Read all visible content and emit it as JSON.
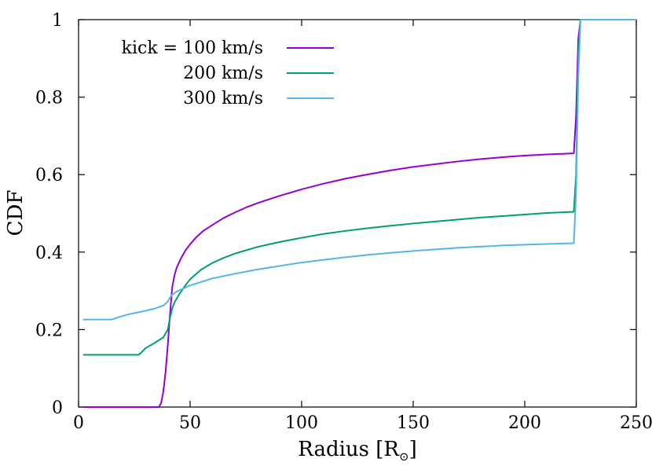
{
  "chart_data": {
    "type": "line",
    "xlabel": "Radius [R",
    "xlabel_sub": "⊙",
    "xlabel_close": "]",
    "ylabel": "CDF",
    "xlim": [
      0,
      250
    ],
    "ylim": [
      0,
      1
    ],
    "x_ticks": [
      "0",
      "50",
      "100",
      "150",
      "200",
      "250"
    ],
    "y_ticks": [
      "0",
      "0.2",
      "0.4",
      "0.6",
      "0.8",
      "1"
    ],
    "grid": false,
    "legend_position": "top-left",
    "series": [
      {
        "name": "kick = 100 km/s",
        "color": "#9400d3",
        "x": [
          2,
          36,
          37,
          38,
          39,
          40,
          41,
          42,
          43,
          44,
          46,
          48,
          50,
          53,
          56,
          60,
          65,
          70,
          75,
          80,
          90,
          100,
          110,
          120,
          130,
          140,
          150,
          160,
          170,
          180,
          190,
          200,
          210,
          222,
          223,
          224,
          225,
          250
        ],
        "y": [
          0,
          0,
          0.01,
          0.04,
          0.09,
          0.16,
          0.24,
          0.31,
          0.34,
          0.36,
          0.385,
          0.405,
          0.42,
          0.44,
          0.455,
          0.47,
          0.488,
          0.502,
          0.515,
          0.526,
          0.545,
          0.562,
          0.577,
          0.59,
          0.601,
          0.611,
          0.62,
          0.627,
          0.634,
          0.64,
          0.645,
          0.649,
          0.652,
          0.655,
          0.75,
          0.95,
          1,
          1
        ]
      },
      {
        "name": "200 km/s",
        "color": "#009e73",
        "x": [
          2,
          10,
          20,
          27,
          28,
          30,
          34,
          38,
          40,
          41,
          42,
          43,
          45,
          48,
          50,
          55,
          60,
          65,
          70,
          80,
          90,
          100,
          110,
          120,
          130,
          140,
          150,
          160,
          170,
          180,
          190,
          200,
          210,
          222,
          223,
          224,
          225,
          250
        ],
        "y": [
          0.135,
          0.135,
          0.135,
          0.135,
          0.14,
          0.152,
          0.165,
          0.18,
          0.2,
          0.23,
          0.255,
          0.27,
          0.29,
          0.315,
          0.33,
          0.355,
          0.372,
          0.385,
          0.396,
          0.413,
          0.426,
          0.437,
          0.447,
          0.455,
          0.462,
          0.468,
          0.474,
          0.479,
          0.484,
          0.489,
          0.493,
          0.497,
          0.501,
          0.504,
          0.6,
          0.9,
          1,
          1
        ]
      },
      {
        "name": "300 km/s",
        "color": "#56b4e9",
        "x": [
          2,
          10,
          15,
          18,
          22,
          28,
          34,
          38,
          40,
          41,
          42,
          44,
          47,
          50,
          55,
          60,
          70,
          80,
          90,
          100,
          110,
          120,
          130,
          140,
          150,
          160,
          170,
          180,
          190,
          200,
          210,
          222,
          223,
          224,
          225,
          250
        ],
        "y": [
          0.226,
          0.226,
          0.226,
          0.232,
          0.239,
          0.246,
          0.254,
          0.262,
          0.272,
          0.283,
          0.29,
          0.298,
          0.306,
          0.314,
          0.323,
          0.332,
          0.344,
          0.355,
          0.364,
          0.373,
          0.38,
          0.387,
          0.393,
          0.398,
          0.403,
          0.407,
          0.411,
          0.414,
          0.417,
          0.419,
          0.421,
          0.423,
          0.55,
          0.85,
          1,
          1
        ]
      }
    ]
  }
}
